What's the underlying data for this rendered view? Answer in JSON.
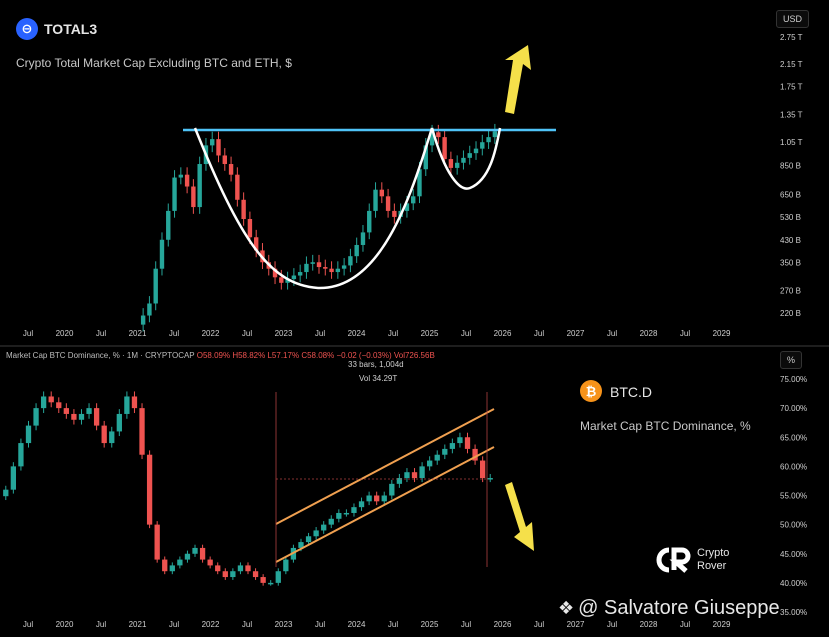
{
  "top": {
    "symbol": "TOTAL3",
    "description": "Crypto Total Market Cap Excluding BTC and ETH, $",
    "unit": "USD",
    "accent": "#2962ff"
  },
  "bottom": {
    "legend_prefix": "Market Cap BTC Dominance, % · 1M · CRYPTOCAP",
    "legend_o": "O58.09%",
    "legend_h": "H58.82%",
    "legend_l": "L57.17%",
    "legend_c": "C58.08%",
    "legend_chg": "−0.02 (−0.03%)",
    "legend_vol": "Vol726.56B",
    "bars_info": "33 bars, 1,004d",
    "vol_info": "Vol 34.29T",
    "symbol": "BTC.D",
    "description": "Market Cap BTC Dominance, %",
    "unit": "%",
    "accent": "#f7931a"
  },
  "brand": {
    "line1": "Crypto",
    "line2": "Rover"
  },
  "watermark": "@ Salvatore Giuseppe",
  "chart_data": [
    {
      "type": "candlestick",
      "title": "TOTAL3",
      "subtitle": "Crypto Total Market Cap Excluding BTC and ETH, $",
      "y_scale": "log",
      "y_tick_labels": [
        "2.75 T",
        "2.15 T",
        "1.75 T",
        "1.35 T",
        "1.05 T",
        "850 B",
        "650 B",
        "530 B",
        "430 B",
        "350 B",
        "270 B",
        "220 B"
      ],
      "y_tick_values": [
        2750,
        2150,
        1750,
        1350,
        1050,
        850,
        650,
        530,
        430,
        350,
        270,
        220
      ],
      "x_tick_labels": [
        "Jul",
        "2020",
        "Jul",
        "2021",
        "Jul",
        "2022",
        "Jul",
        "2023",
        "Jul",
        "2024",
        "Jul",
        "2025",
        "Jul",
        "2026",
        "Jul",
        "2027",
        "Jul",
        "2028",
        "Jul",
        "2029"
      ],
      "ylim": [
        200,
        3000
      ],
      "close_values": [
        215,
        240,
        330,
        430,
        560,
        760,
        780,
        700,
        580,
        860,
        1020,
        1080,
        930,
        860,
        780,
        620,
        520,
        440,
        390,
        350,
        330,
        305,
        290,
        300,
        310,
        320,
        345,
        350,
        335,
        330,
        320,
        330,
        340,
        370,
        410,
        460,
        560,
        680,
        640,
        560,
        530,
        560,
        600,
        640,
        820,
        1020,
        1150,
        1100,
        900,
        830,
        870,
        910,
        950,
        990,
        1050,
        1100,
        1160
      ],
      "annotations": [
        "resistance line",
        "cup and handle",
        "up arrow"
      ],
      "resistance_level": 1200
    },
    {
      "type": "candlestick",
      "title": "BTC.D",
      "subtitle": "Market Cap BTC Dominance, %",
      "y_tick_labels": [
        "75.00%",
        "70.00%",
        "65.00%",
        "60.00%",
        "55.00%",
        "50.00%",
        "45.00%",
        "40.00%",
        "35.00%"
      ],
      "y_tick_values": [
        75,
        70,
        65,
        60,
        55,
        50,
        45,
        40,
        35
      ],
      "x_tick_labels": [
        "Jul",
        "2020",
        "Jul",
        "2021",
        "Jul",
        "2022",
        "Jul",
        "2023",
        "Jul",
        "2024",
        "Jul",
        "2025",
        "Jul",
        "2026",
        "Jul",
        "2027",
        "Jul",
        "2028",
        "Jul",
        "2029"
      ],
      "ylim": [
        33,
        77
      ],
      "close_values": [
        56,
        60,
        64,
        67,
        70,
        72,
        71,
        70,
        69,
        68,
        69,
        70,
        67,
        64,
        66,
        69,
        72,
        70,
        62,
        50,
        44,
        42,
        43,
        44,
        45,
        46,
        44,
        43,
        42,
        41,
        42,
        43,
        42,
        41,
        40,
        40,
        42,
        44,
        46,
        47,
        48,
        49,
        50,
        51,
        52,
        52,
        53,
        54,
        55,
        54,
        55,
        57,
        58,
        59,
        58,
        60,
        61,
        62,
        63,
        64,
        65,
        63,
        61,
        58,
        58
      ],
      "annotations": [
        "ascending channel",
        "down arrow"
      ]
    }
  ]
}
